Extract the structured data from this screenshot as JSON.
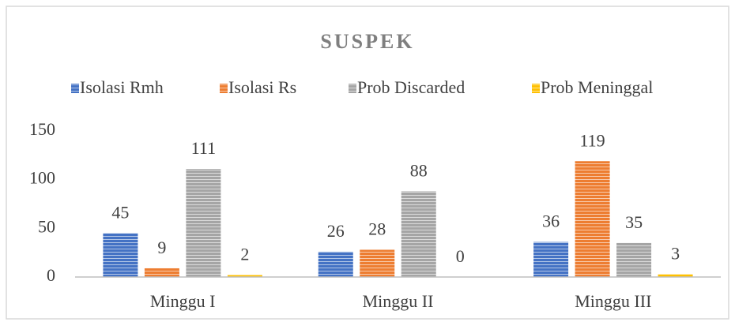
{
  "chart_data": {
    "type": "bar",
    "title": "SUSPEK",
    "categories": [
      "Minggu I",
      "Minggu II",
      "Minggu III"
    ],
    "series": [
      {
        "name": "Isolasi Rmh",
        "color": "#4472c4",
        "values": [
          45,
          26,
          36
        ]
      },
      {
        "name": "Isolasi Rs",
        "color": "#ed7d31",
        "values": [
          9,
          28,
          119
        ]
      },
      {
        "name": "Prob Discarded",
        "color": "#a5a5a5",
        "values": [
          111,
          88,
          35
        ]
      },
      {
        "name": "Prob Meninggal",
        "color": "#ffc000",
        "values": [
          2,
          0,
          3
        ]
      }
    ],
    "ylim": [
      0,
      150
    ],
    "yticks": [
      0,
      50,
      100,
      150
    ],
    "grid": false,
    "legend": "top"
  }
}
